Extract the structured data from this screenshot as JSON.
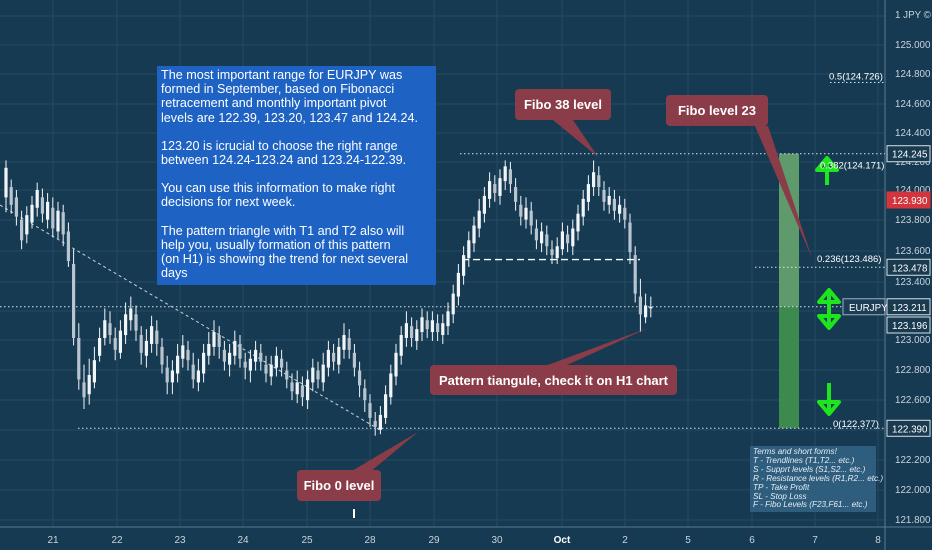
{
  "colors": {
    "background": "#163a52",
    "grid": "#244a63",
    "candle": "#f2f5f8",
    "info_box": "#1e62c4",
    "callout": "#8a3c48",
    "arrow": "#1ee61e",
    "fib_bar_light": "#5f9a6c",
    "fib_bar_dark": "#3d8a4e",
    "current_price_badge": "#d2363c"
  },
  "chart_data": {
    "type": "candlestick",
    "instrument": "EURJPY",
    "axis_title": "1 JPY ©",
    "ylim": [
      121.8,
      125.2
    ],
    "y_ticks": [
      "125.000",
      "124.800",
      "124.600",
      "124.400",
      "124.200",
      "124.000",
      "123.800",
      "123.600",
      "123.400",
      "123.000",
      "122.800",
      "122.600",
      "122.200",
      "122.000",
      "121.800"
    ],
    "x_ticks": [
      "21",
      "22",
      "23",
      "24",
      "25",
      "28",
      "29",
      "30",
      "Oct",
      "2",
      "5",
      "6",
      "7",
      "8"
    ],
    "price_badges": [
      {
        "value": "124.245",
        "style": "outline"
      },
      {
        "value": "123.930",
        "style": "red"
      },
      {
        "value": "123.478",
        "style": "outline"
      },
      {
        "value": "EURJPY",
        "style": "label"
      },
      {
        "value": "123.211",
        "style": "outline"
      },
      {
        "value": "123.196",
        "style": "outline"
      },
      {
        "value": "122.390",
        "style": "outline"
      }
    ],
    "fib_levels": [
      {
        "label": "0.5(124.726)",
        "value": 124.726
      },
      {
        "label": "0.382(124.171)",
        "value": 124.171
      },
      {
        "label": "0.236(123.486)",
        "value": 123.486
      },
      {
        "label": "0(122.377)",
        "value": 122.377
      }
    ],
    "horizontal_levels": [
      124.245,
      123.478,
      123.211,
      122.39
    ],
    "candles": [
      [
        123.95,
        124.15,
        124.2,
        123.85
      ],
      [
        124.02,
        123.9,
        124.07,
        123.84
      ],
      [
        123.95,
        123.82,
        124.0,
        123.76
      ],
      [
        123.8,
        123.66,
        123.86,
        123.6
      ],
      [
        123.7,
        123.83,
        123.89,
        123.64
      ],
      [
        123.78,
        123.9,
        123.96,
        123.74
      ],
      [
        123.88,
        124.0,
        124.05,
        123.82
      ],
      [
        123.95,
        123.84,
        124.01,
        123.78
      ],
      [
        123.8,
        123.92,
        123.98,
        123.74
      ],
      [
        123.88,
        123.74,
        123.95,
        123.68
      ],
      [
        123.72,
        123.86,
        123.92,
        123.67
      ],
      [
        123.85,
        123.7,
        123.9,
        123.62
      ],
      [
        123.72,
        123.52,
        123.78,
        123.48
      ],
      [
        123.5,
        123.0,
        123.6,
        122.95
      ],
      [
        123.0,
        122.72,
        123.1,
        122.65
      ],
      [
        122.7,
        122.6,
        122.82,
        122.52
      ],
      [
        122.62,
        122.75,
        122.86,
        122.55
      ],
      [
        122.7,
        122.85,
        122.94,
        122.66
      ],
      [
        122.88,
        123.0,
        123.07,
        122.84
      ],
      [
        123.0,
        123.12,
        123.2,
        122.95
      ],
      [
        123.1,
        123.02,
        123.18,
        122.96
      ],
      [
        123.0,
        122.92,
        123.07,
        122.85
      ],
      [
        122.9,
        123.05,
        123.12,
        122.86
      ],
      [
        123.02,
        123.16,
        123.24,
        122.96
      ],
      [
        123.12,
        123.2,
        123.28,
        123.05
      ],
      [
        123.16,
        123.05,
        123.22,
        122.98
      ],
      [
        123.02,
        122.9,
        123.08,
        122.82
      ],
      [
        122.88,
        122.98,
        123.06,
        122.8
      ],
      [
        122.96,
        123.08,
        123.15,
        122.9
      ],
      [
        123.05,
        122.96,
        123.12,
        122.88
      ],
      [
        122.94,
        122.82,
        123.0,
        122.76
      ],
      [
        122.8,
        122.7,
        122.88,
        122.62
      ],
      [
        122.7,
        122.78,
        122.85,
        122.62
      ],
      [
        122.76,
        122.88,
        122.96,
        122.7
      ],
      [
        122.86,
        122.95,
        123.02,
        122.8
      ],
      [
        122.92,
        122.85,
        122.98,
        122.78
      ],
      [
        122.82,
        122.72,
        122.9,
        122.66
      ],
      [
        122.7,
        122.78,
        122.86,
        122.64
      ],
      [
        122.76,
        122.9,
        122.96,
        122.7
      ],
      [
        122.88,
        122.96,
        123.04,
        122.82
      ],
      [
        122.94,
        123.04,
        123.12,
        122.88
      ],
      [
        123.02,
        122.94,
        123.08,
        122.86
      ],
      [
        122.92,
        122.84,
        122.98,
        122.78
      ],
      [
        122.82,
        122.9,
        122.96,
        122.74
      ],
      [
        122.88,
        122.98,
        123.05,
        122.82
      ],
      [
        122.96,
        122.86,
        123.02,
        122.8
      ],
      [
        122.84,
        122.8,
        122.9,
        122.72
      ],
      [
        122.78,
        122.86,
        122.92,
        122.7
      ],
      [
        122.84,
        122.92,
        122.98,
        122.78
      ],
      [
        122.9,
        122.84,
        122.96,
        122.78
      ],
      [
        122.82,
        122.76,
        122.88,
        122.7
      ],
      [
        122.74,
        122.82,
        122.88,
        122.68
      ],
      [
        122.8,
        122.88,
        122.94,
        122.74
      ],
      [
        122.86,
        122.8,
        122.92,
        122.74
      ],
      [
        122.78,
        122.72,
        122.84,
        122.66
      ],
      [
        122.7,
        122.64,
        122.76,
        122.58
      ],
      [
        122.62,
        122.7,
        122.78,
        122.56
      ],
      [
        122.68,
        122.6,
        122.74,
        122.54
      ],
      [
        122.58,
        122.72,
        122.78,
        122.52
      ],
      [
        122.7,
        122.8,
        122.86,
        122.64
      ],
      [
        122.78,
        122.72,
        122.84,
        122.66
      ],
      [
        122.7,
        122.82,
        122.9,
        122.64
      ],
      [
        122.8,
        122.92,
        122.98,
        122.74
      ],
      [
        122.9,
        122.84,
        122.96,
        122.78
      ],
      [
        122.82,
        122.94,
        123.0,
        122.76
      ],
      [
        122.92,
        123.02,
        123.1,
        122.86
      ],
      [
        123.0,
        122.92,
        123.06,
        122.86
      ],
      [
        122.9,
        122.8,
        122.96,
        122.74
      ],
      [
        122.78,
        122.68,
        122.84,
        122.6
      ],
      [
        122.66,
        122.58,
        122.72,
        122.5
      ],
      [
        122.56,
        122.46,
        122.62,
        122.4
      ],
      [
        122.44,
        122.4,
        122.5,
        122.34
      ],
      [
        122.38,
        122.48,
        122.54,
        122.35
      ],
      [
        122.46,
        122.62,
        122.68,
        122.42
      ],
      [
        122.6,
        122.76,
        122.82,
        122.55
      ],
      [
        122.74,
        122.9,
        122.96,
        122.68
      ],
      [
        122.88,
        123.02,
        123.08,
        122.82
      ],
      [
        123.0,
        123.1,
        123.18,
        122.94
      ],
      [
        123.08,
        123.0,
        123.14,
        122.94
      ],
      [
        122.98,
        123.06,
        123.12,
        122.92
      ],
      [
        123.04,
        123.14,
        123.2,
        122.98
      ],
      [
        123.12,
        123.06,
        123.18,
        123.0
      ],
      [
        123.04,
        123.12,
        123.18,
        122.98
      ],
      [
        123.1,
        123.04,
        123.16,
        122.98
      ],
      [
        123.02,
        123.1,
        123.16,
        122.96
      ],
      [
        123.08,
        123.18,
        123.24,
        123.02
      ],
      [
        123.16,
        123.3,
        123.36,
        123.1
      ],
      [
        123.28,
        123.44,
        123.5,
        123.22
      ],
      [
        123.42,
        123.56,
        123.62,
        123.36
      ],
      [
        123.54,
        123.66,
        123.72,
        123.48
      ],
      [
        123.64,
        123.76,
        123.82,
        123.58
      ],
      [
        123.74,
        123.86,
        123.94,
        123.68
      ],
      [
        123.84,
        123.96,
        124.02,
        123.78
      ],
      [
        123.94,
        124.06,
        124.12,
        123.88
      ],
      [
        124.04,
        123.98,
        124.1,
        123.92
      ],
      [
        123.96,
        124.08,
        124.14,
        123.9
      ],
      [
        124.06,
        124.16,
        124.2,
        124.0
      ],
      [
        124.14,
        124.04,
        124.19,
        123.98
      ],
      [
        124.02,
        123.92,
        124.08,
        123.86
      ],
      [
        123.9,
        123.82,
        123.96,
        123.76
      ],
      [
        123.8,
        123.88,
        123.95,
        123.74
      ],
      [
        123.86,
        123.76,
        123.92,
        123.7
      ],
      [
        123.74,
        123.66,
        123.8,
        123.6
      ],
      [
        123.64,
        123.72,
        123.78,
        123.58
      ],
      [
        123.7,
        123.62,
        123.76,
        123.56
      ],
      [
        123.6,
        123.56,
        123.66,
        123.5
      ],
      [
        123.54,
        123.62,
        123.68,
        123.5
      ],
      [
        123.6,
        123.72,
        123.78,
        123.56
      ],
      [
        123.7,
        123.64,
        123.76,
        123.58
      ],
      [
        123.62,
        123.74,
        123.8,
        123.56
      ],
      [
        123.72,
        123.84,
        123.9,
        123.66
      ],
      [
        123.82,
        123.94,
        124.0,
        123.76
      ],
      [
        123.92,
        124.04,
        124.1,
        123.86
      ],
      [
        124.02,
        124.12,
        124.2,
        123.96
      ],
      [
        124.1,
        124.02,
        124.16,
        123.96
      ],
      [
        124.0,
        123.92,
        124.06,
        123.86
      ],
      [
        123.9,
        123.96,
        124.02,
        123.84
      ],
      [
        123.94,
        123.86,
        124.0,
        123.8
      ],
      [
        123.84,
        123.9,
        123.96,
        123.78
      ],
      [
        123.88,
        123.8,
        123.94,
        123.74
      ],
      [
        123.78,
        123.58,
        123.84,
        123.5
      ],
      [
        123.56,
        123.3,
        123.62,
        123.24
      ],
      [
        123.28,
        123.16,
        123.4,
        123.04
      ],
      [
        123.14,
        123.22,
        123.3,
        123.1
      ],
      [
        123.2,
        123.21,
        123.28,
        123.14
      ]
    ]
  },
  "info_box": {
    "p1": "The most important range for EURJPY was\nformed  in September, based on Fibonacci\nretracement and monthly important pivot\n levels are 122.39, 123.20, 123.47 and 124.24.",
    "p2": "123.20 is icrucial to choose the right range\nbetween 124.24-123.24 and 123.24-122.39.",
    "p3": "You can use this information to make right\ndecisions for next week.",
    "p4": "The pattern triangle with T1 and T2 also will\nhelp you, usually formation of this pattern\n(on H1) is showing the trend for next several\ndays"
  },
  "callouts": {
    "fibo38": "Fibo 38 level",
    "fibo23": "Fibo level 23",
    "pattern": "Pattern tiangule, check it on H1 chart",
    "fibo0": "Fibo 0 level"
  },
  "legend": {
    "title": "Terms and short forms!",
    "items": [
      "T - Trendlines (T1,T2... etc.)",
      "S - Supprt levels (S1,S2... etc.)",
      "R - Resistance levels (R1,R2... etc.)",
      "TP - Take Profit",
      "SL - Stop Loss",
      "F - Fibo Levels  (F23,F61... etc.)"
    ]
  }
}
